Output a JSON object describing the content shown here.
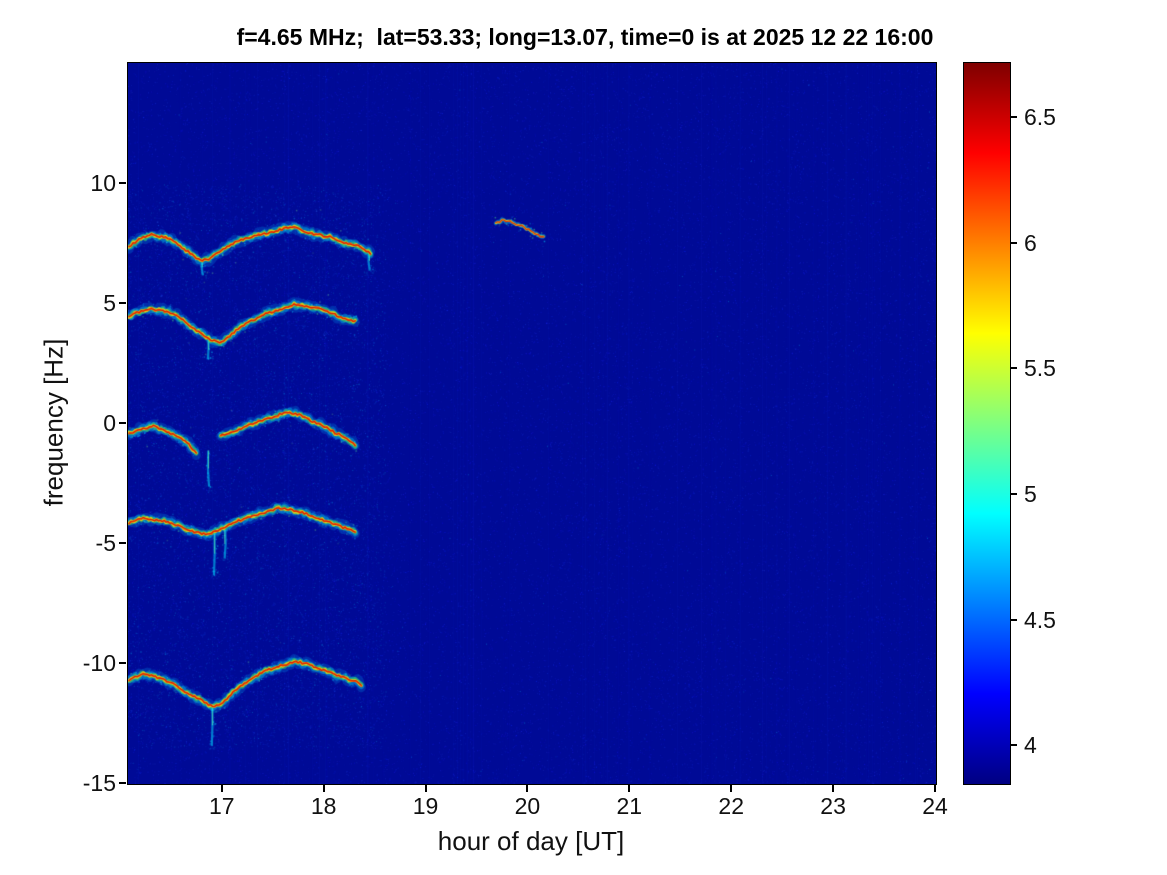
{
  "title": "f=4.65 MHz;  lat=53.33; long=13.07, time=0 is at 2025 12 22 16:00",
  "axes": {
    "xlabel": "hour of day [UT]",
    "ylabel": "frequency [Hz]",
    "x_ticks": [
      17,
      18,
      19,
      20,
      21,
      22,
      23,
      24
    ],
    "y_ticks": [
      10,
      5,
      0,
      -5,
      -10,
      -15
    ],
    "x_range": [
      16.07,
      24
    ],
    "y_range": [
      -15,
      15.05
    ]
  },
  "colorbar": {
    "tick_labels": [
      "6.5",
      "6",
      "5.5",
      "5",
      "4.5",
      "4"
    ],
    "vmin": 3.85,
    "vmax": 6.72,
    "gradient": [
      [
        "#7f0000",
        0
      ],
      [
        "#ff0000",
        0.125
      ],
      [
        "#ffff00",
        0.375
      ],
      [
        "#00ffff",
        0.625
      ],
      [
        "#0000ff",
        0.875
      ],
      [
        "#000082",
        1
      ]
    ]
  },
  "chart_data": {
    "type": "heatmap",
    "subtype": "doppler-spectrogram",
    "title": "f=4.65 MHz;  lat=53.33; long=13.07, time=0 is at 2025 12 22 16:00",
    "xlabel": "hour of day [UT]",
    "ylabel": "frequency [Hz]",
    "x_range": [
      16.07,
      24
    ],
    "y_range": [
      -15,
      15.05
    ],
    "colorbar_range": [
      3.85,
      6.72
    ],
    "background_level": 4.0,
    "background_color": "#000a96",
    "grid": false,
    "traces": [
      {
        "name": "doppler-trace-plus8Hz",
        "halo": 30,
        "points": [
          [
            16.08,
            7.4
          ],
          [
            16.18,
            7.7
          ],
          [
            16.3,
            7.9
          ],
          [
            16.42,
            7.8
          ],
          [
            16.52,
            7.6
          ],
          [
            16.62,
            7.3
          ],
          [
            16.72,
            7.0
          ],
          [
            16.8,
            6.8
          ],
          [
            16.88,
            6.9
          ],
          [
            16.97,
            7.2
          ],
          [
            17.08,
            7.5
          ],
          [
            17.2,
            7.7
          ],
          [
            17.35,
            7.9
          ],
          [
            17.5,
            8.0
          ],
          [
            17.62,
            8.2
          ],
          [
            17.72,
            8.2
          ],
          [
            17.82,
            8.0
          ],
          [
            17.93,
            7.9
          ],
          [
            18.05,
            7.8
          ],
          [
            18.15,
            7.6
          ],
          [
            18.25,
            7.5
          ],
          [
            18.35,
            7.4
          ],
          [
            18.45,
            7.1
          ]
        ]
      },
      {
        "name": "doppler-trace-plus4.7Hz",
        "halo": 24,
        "points": [
          [
            16.08,
            4.5
          ],
          [
            16.2,
            4.7
          ],
          [
            16.32,
            4.8
          ],
          [
            16.45,
            4.7
          ],
          [
            16.55,
            4.5
          ],
          [
            16.65,
            4.2
          ],
          [
            16.78,
            3.8
          ],
          [
            16.88,
            3.5
          ],
          [
            16.97,
            3.4
          ],
          [
            17.05,
            3.6
          ],
          [
            17.15,
            4.0
          ],
          [
            17.28,
            4.3
          ],
          [
            17.42,
            4.6
          ],
          [
            17.58,
            4.8
          ],
          [
            17.7,
            5.0
          ],
          [
            17.82,
            4.9
          ],
          [
            17.95,
            4.8
          ],
          [
            18.08,
            4.6
          ],
          [
            18.2,
            4.4
          ],
          [
            18.3,
            4.3
          ]
        ]
      },
      {
        "name": "doppler-trace-0Hz-left",
        "halo": 26,
        "points": [
          [
            16.08,
            -0.4
          ],
          [
            16.2,
            -0.2
          ],
          [
            16.32,
            -0.1
          ],
          [
            16.45,
            -0.3
          ],
          [
            16.55,
            -0.5
          ],
          [
            16.65,
            -0.8
          ],
          [
            16.74,
            -1.2
          ]
        ]
      },
      {
        "name": "doppler-trace-0Hz-right",
        "halo": 30,
        "points": [
          [
            16.98,
            -0.5
          ],
          [
            17.1,
            -0.3
          ],
          [
            17.22,
            -0.1
          ],
          [
            17.35,
            0.1
          ],
          [
            17.5,
            0.3
          ],
          [
            17.62,
            0.5
          ],
          [
            17.75,
            0.4
          ],
          [
            17.88,
            0.1
          ],
          [
            18.0,
            -0.1
          ],
          [
            18.12,
            -0.4
          ],
          [
            18.22,
            -0.6
          ],
          [
            18.3,
            -0.9
          ]
        ]
      },
      {
        "name": "doppler-trace-minus4Hz",
        "halo": 26,
        "points": [
          [
            16.08,
            -4.1
          ],
          [
            16.22,
            -3.9
          ],
          [
            16.35,
            -4.0
          ],
          [
            16.48,
            -4.1
          ],
          [
            16.6,
            -4.3
          ],
          [
            16.72,
            -4.5
          ],
          [
            16.85,
            -4.6
          ],
          [
            16.97,
            -4.4
          ],
          [
            17.1,
            -4.1
          ],
          [
            17.25,
            -3.9
          ],
          [
            17.4,
            -3.7
          ],
          [
            17.55,
            -3.5
          ],
          [
            17.68,
            -3.6
          ],
          [
            17.8,
            -3.7
          ],
          [
            17.92,
            -3.9
          ],
          [
            18.05,
            -4.1
          ],
          [
            18.18,
            -4.3
          ],
          [
            18.3,
            -4.5
          ]
        ]
      },
      {
        "name": "doppler-trace-minus10.5Hz",
        "halo": 28,
        "points": [
          [
            16.08,
            -10.7
          ],
          [
            16.2,
            -10.4
          ],
          [
            16.32,
            -10.5
          ],
          [
            16.45,
            -10.7
          ],
          [
            16.55,
            -10.9
          ],
          [
            16.65,
            -11.2
          ],
          [
            16.78,
            -11.5
          ],
          [
            16.9,
            -11.8
          ],
          [
            17.0,
            -11.6
          ],
          [
            17.12,
            -11.1
          ],
          [
            17.25,
            -10.7
          ],
          [
            17.4,
            -10.3
          ],
          [
            17.55,
            -10.1
          ],
          [
            17.7,
            -9.9
          ],
          [
            17.82,
            -10.0
          ],
          [
            17.95,
            -10.2
          ],
          [
            18.08,
            -10.4
          ],
          [
            18.2,
            -10.6
          ],
          [
            18.3,
            -10.7
          ],
          [
            18.36,
            -10.9
          ]
        ]
      },
      {
        "name": "doppler-trace-short-20UT",
        "halo": 7,
        "thin": true,
        "points": [
          [
            19.68,
            8.4
          ],
          [
            19.76,
            8.5
          ],
          [
            19.84,
            8.4
          ],
          [
            19.92,
            8.3
          ],
          [
            20.0,
            8.1
          ],
          [
            20.08,
            7.9
          ],
          [
            20.15,
            7.8
          ]
        ]
      }
    ],
    "spurs": [
      {
        "x": 16.8,
        "from": 6.9,
        "to": 6.2
      },
      {
        "x": 18.44,
        "from": 7.2,
        "to": 6.4
      },
      {
        "x": 16.86,
        "from": 3.5,
        "to": 2.7
      },
      {
        "x": 16.86,
        "from": -1.1,
        "to": -2.6
      },
      {
        "x": 16.92,
        "from": -4.5,
        "to": -6.3
      },
      {
        "x": 17.02,
        "from": -4.4,
        "to": -5.6
      },
      {
        "x": 16.9,
        "from": -11.7,
        "to": -13.4
      }
    ]
  }
}
